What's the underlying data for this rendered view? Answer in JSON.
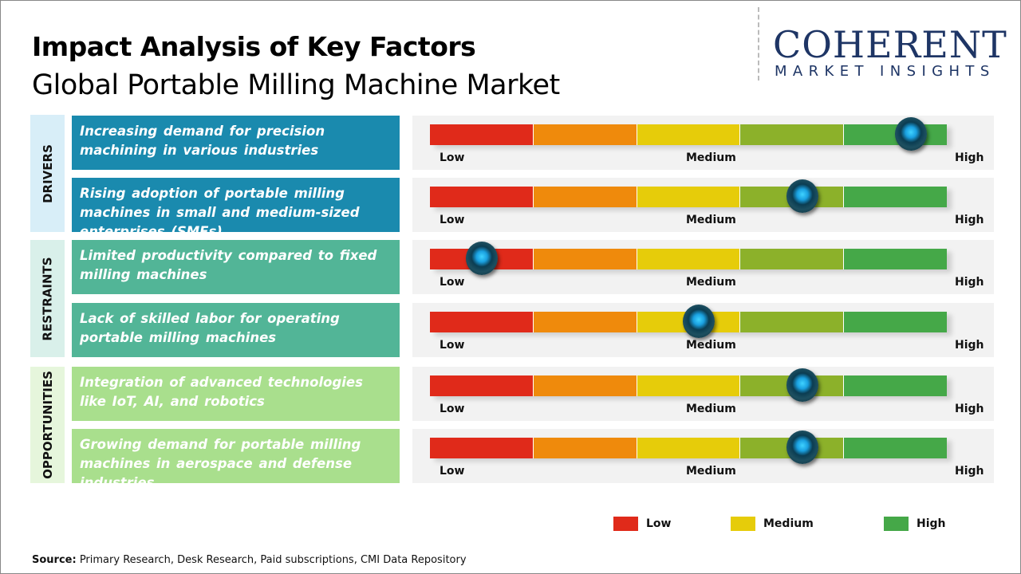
{
  "title": "Impact Analysis of Key Factors",
  "subtitle": "Global Portable Milling Machine Market",
  "logo": {
    "line1": "COHERENT",
    "line2": "MARKET INSIGHTS"
  },
  "colors": {
    "drivers": "#1a8aae",
    "restraints": "#52b597",
    "opportunities": "#a9df8d",
    "segments": [
      "#e02a1a",
      "#ef8a0c",
      "#e6cc0a",
      "#8cb12a",
      "#45a848"
    ]
  },
  "chart_data": {
    "type": "gauge",
    "scale_labels": [
      "Low",
      "Medium",
      "High"
    ],
    "categories": [
      {
        "name": "DRIVERS",
        "factors": [
          {
            "text": "Increasing demand for precision machining in various industries",
            "impact": 0.93
          },
          {
            "text": "Rising adoption of portable milling machines in small and medium-sized enterprises (SMEs)",
            "impact": 0.72
          }
        ]
      },
      {
        "name": "RESTRAINTS",
        "factors": [
          {
            "text": "Limited productivity compared to fixed milling machines",
            "impact": 0.1
          },
          {
            "text": "Lack of skilled labor for operating portable milling machines",
            "impact": 0.52
          }
        ]
      },
      {
        "name": "OPPORTUNITIES",
        "factors": [
          {
            "text": "Integration of advanced technologies like IoT, AI, and robotics",
            "impact": 0.72
          },
          {
            "text": "Growing demand for portable milling machines in aerospace and defense industries",
            "impact": 0.72
          }
        ]
      }
    ],
    "legend": [
      {
        "label": "Low",
        "color": "#e02a1a"
      },
      {
        "label": "Medium",
        "color": "#e6cc0a"
      },
      {
        "label": "High",
        "color": "#45a848"
      }
    ]
  },
  "source": {
    "label": "Source:",
    "text": " Primary Research, Desk Research, Paid subscriptions, CMI Data Repository"
  }
}
